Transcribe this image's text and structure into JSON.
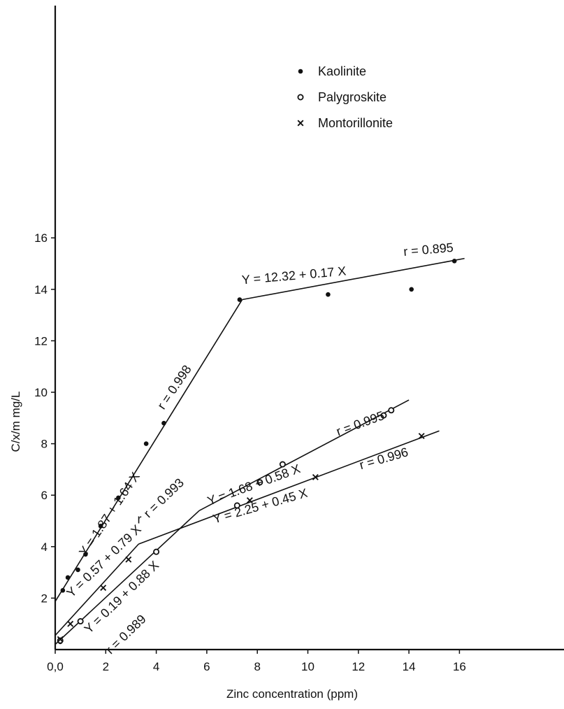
{
  "chart_data": {
    "type": "scatter",
    "title": "",
    "xlabel": "Zinc concentration (ppm)",
    "ylabel": "C/x/m mg/L",
    "xlim": [
      0,
      16
    ],
    "ylim": [
      0,
      16
    ],
    "x_ticks": [
      0,
      2,
      4,
      6,
      8,
      10,
      12,
      14,
      16
    ],
    "x_tick_labels": [
      "0,0",
      "2",
      "4",
      "6",
      "8",
      "10",
      "12",
      "14",
      "16"
    ],
    "y_ticks": [
      2,
      4,
      6,
      8,
      10,
      12,
      14,
      16
    ],
    "y_tick_labels": [
      "2",
      "4",
      "6",
      "8",
      "10",
      "12",
      "14",
      "16"
    ],
    "grid": false,
    "legend_position": "top-right",
    "series": [
      {
        "name": "Kaolinite",
        "marker": "filled-dot",
        "points": [
          [
            0.2,
            0.3
          ],
          [
            0.3,
            2.3
          ],
          [
            0.5,
            2.8
          ],
          [
            0.9,
            3.1
          ],
          [
            1.2,
            3.7
          ],
          [
            1.8,
            4.8
          ],
          [
            2.5,
            5.9
          ],
          [
            3.6,
            8.0
          ],
          [
            4.3,
            8.8
          ],
          [
            7.3,
            13.6
          ],
          [
            10.8,
            13.8
          ],
          [
            14.1,
            14.0
          ],
          [
            15.8,
            15.1
          ]
        ],
        "fit_segments": [
          [
            [
              0,
              1.87
            ],
            [
              7.4,
              13.6
            ]
          ],
          [
            [
              7.4,
              13.6
            ],
            [
              16.2,
              15.2
            ]
          ]
        ]
      },
      {
        "name": "Palygroskite",
        "marker": "open-circle",
        "points": [
          [
            0.2,
            0.35
          ],
          [
            1.0,
            1.1
          ],
          [
            4.0,
            3.8
          ],
          [
            7.2,
            5.6
          ],
          [
            8.1,
            6.5
          ],
          [
            9.0,
            7.2
          ],
          [
            13.0,
            9.1
          ],
          [
            13.3,
            9.3
          ]
        ],
        "fit_segments": [
          [
            [
              0,
              0.2
            ],
            [
              5.7,
              5.4
            ]
          ],
          [
            [
              5.7,
              5.4
            ],
            [
              14.0,
              9.7
            ]
          ]
        ]
      },
      {
        "name": "Montorillonite",
        "marker": "cross",
        "points": [
          [
            0.2,
            0.4
          ],
          [
            0.6,
            1.0
          ],
          [
            1.9,
            2.4
          ],
          [
            2.9,
            3.5
          ],
          [
            7.7,
            5.8
          ],
          [
            10.3,
            6.7
          ],
          [
            14.5,
            8.3
          ]
        ],
        "fit_segments": [
          [
            [
              0,
              0.55
            ],
            [
              3.3,
              4.1
            ]
          ],
          [
            [
              3.3,
              4.1
            ],
            [
              15.2,
              8.5
            ]
          ]
        ]
      }
    ],
    "annotations": [
      {
        "text": "Y = 1.87 + 1.64 X",
        "x": 1.2,
        "y": 3.6,
        "angle": -56
      },
      {
        "text": "r = 0.998",
        "x": 4.3,
        "y": 9.3,
        "angle": -56
      },
      {
        "text": "Y = 12.32 + 0.17 X",
        "x": 7.4,
        "y": 14.2,
        "angle": -5
      },
      {
        "text": "r = 0.895",
        "x": 13.8,
        "y": 15.3,
        "angle": -5
      },
      {
        "text": "Y = 0.57 + 0.79 X",
        "x": 0.65,
        "y": 2.0,
        "angle": -44
      },
      {
        "text": "r = 0.993",
        "x": 3.7,
        "y": 5.1,
        "angle": -44
      },
      {
        "text": "r",
        "x": 3.25,
        "y": 4.9,
        "angle": 0
      },
      {
        "text": "Y = 0.19 + 0.88 X",
        "x": 1.35,
        "y": 0.6,
        "angle": -44
      },
      {
        "text": "r = 0.989",
        "x": 2.2,
        "y": -0.2,
        "angle": -44
      },
      {
        "text": "Y = 1.68 + 0.58 X",
        "x": 6.1,
        "y": 5.6,
        "angle": -20
      },
      {
        "text": "r = 0.995",
        "x": 11.2,
        "y": 8.3,
        "angle": -20
      },
      {
        "text": "Y = 2.25 + 0.45 X",
        "x": 6.3,
        "y": 4.9,
        "angle": -16
      },
      {
        "text": "r = 0.996",
        "x": 12.1,
        "y": 7.0,
        "angle": -16
      }
    ]
  }
}
